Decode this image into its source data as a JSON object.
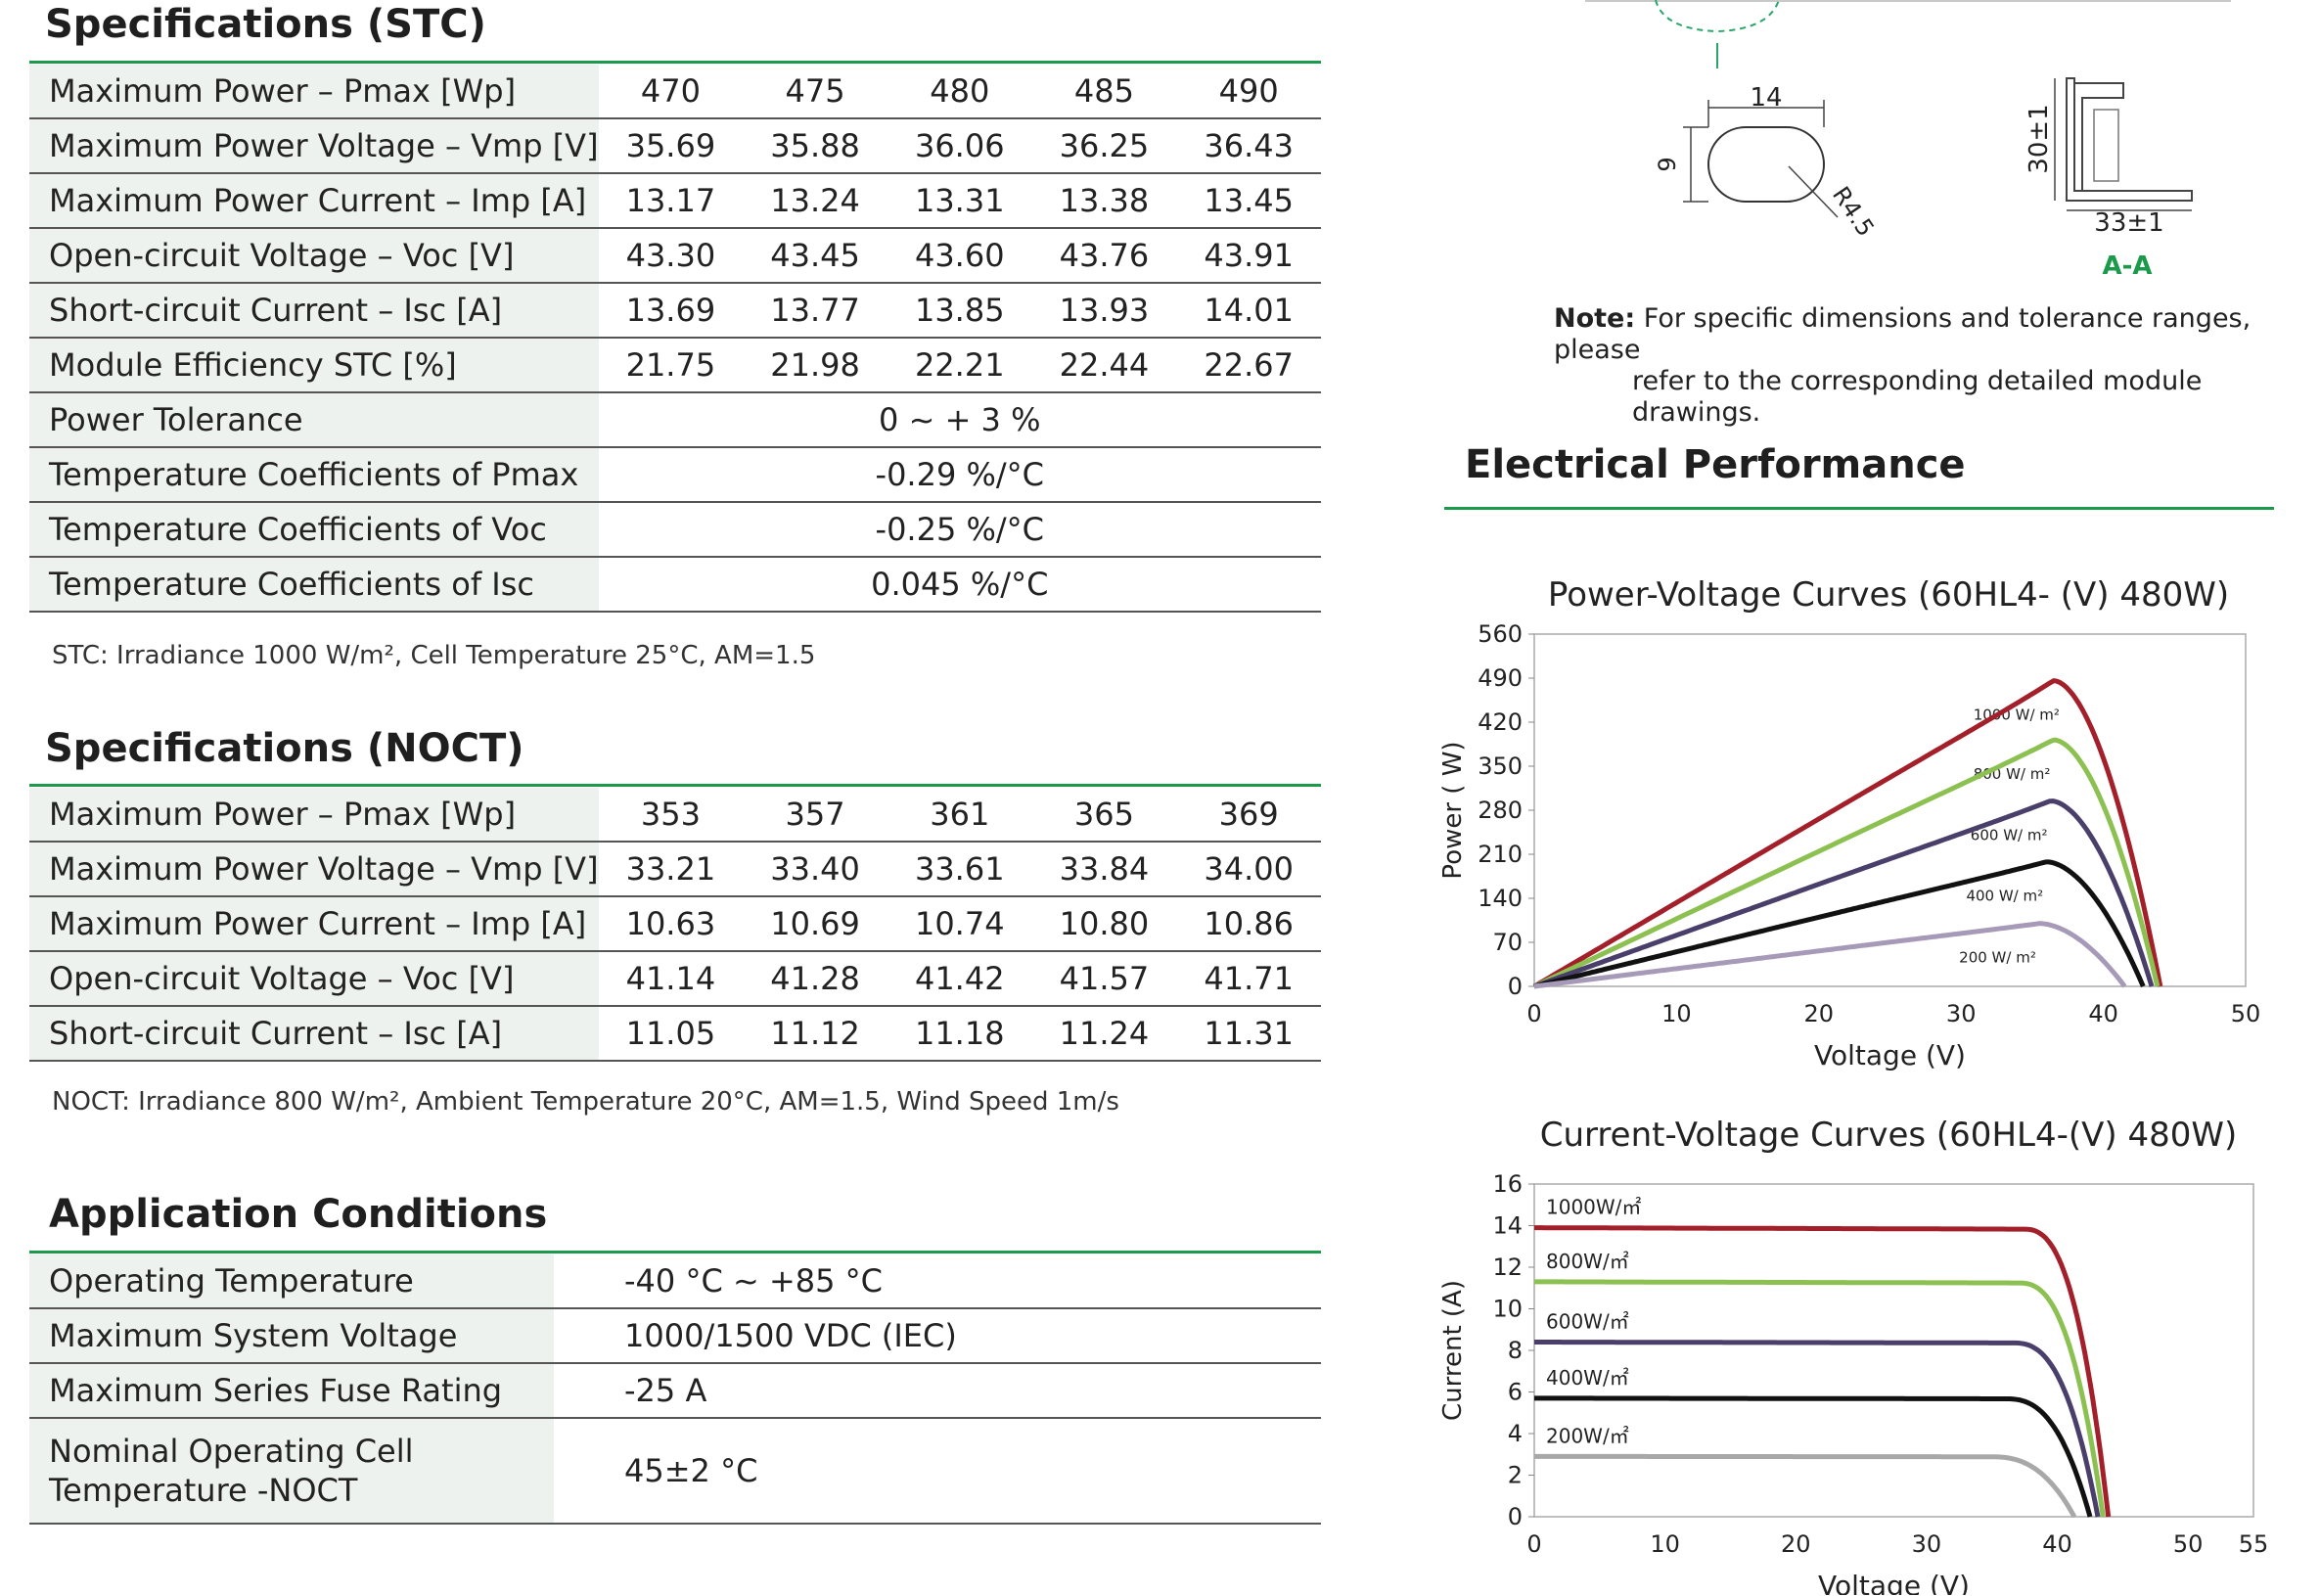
{
  "stc": {
    "title": "Specifications (STC)",
    "rows": [
      {
        "label": "Maximum Power – Pmax [Wp]",
        "values": [
          "470",
          "475",
          "480",
          "485",
          "490"
        ]
      },
      {
        "label": "Maximum Power Voltage – Vmp [V]",
        "values": [
          "35.69",
          "35.88",
          "36.06",
          "36.25",
          "36.43"
        ]
      },
      {
        "label": "Maximum Power Current – Imp [A]",
        "values": [
          "13.17",
          "13.24",
          "13.31",
          "13.38",
          "13.45"
        ]
      },
      {
        "label": "Open-circuit Voltage – Voc [V]",
        "values": [
          "43.30",
          "43.45",
          "43.60",
          "43.76",
          "43.91"
        ]
      },
      {
        "label": "Short-circuit Current – Isc [A]",
        "values": [
          "13.69",
          "13.77",
          "13.85",
          "13.93",
          "14.01"
        ]
      },
      {
        "label": "Module Efficiency STC [%]",
        "values": [
          "21.75",
          "21.98",
          "22.21",
          "22.44",
          "22.67"
        ]
      }
    ],
    "span_rows": [
      {
        "label": "Power Tolerance",
        "value": "0 ~ + 3 %"
      },
      {
        "label": "Temperature Coefficients of Pmax",
        "value": "-0.29 %/°C"
      },
      {
        "label": "Temperature Coefficients of Voc",
        "value": "-0.25 %/°C"
      },
      {
        "label": "Temperature Coefficients of Isc",
        "value": "0.045 %/°C"
      }
    ],
    "note": "STC: Irradiance 1000 W/m², Cell Temperature 25°C, AM=1.5"
  },
  "noct": {
    "title": "Specifications (NOCT)",
    "rows": [
      {
        "label": "Maximum Power – Pmax [Wp]",
        "values": [
          "353",
          "357",
          "361",
          "365",
          "369"
        ]
      },
      {
        "label": "Maximum Power Voltage – Vmp [V]",
        "values": [
          "33.21",
          "33.40",
          "33.61",
          "33.84",
          "34.00"
        ]
      },
      {
        "label": "Maximum Power Current – Imp [A]",
        "values": [
          "10.63",
          "10.69",
          "10.74",
          "10.80",
          "10.86"
        ]
      },
      {
        "label": "Open-circuit Voltage – Voc [V]",
        "values": [
          "41.14",
          "41.28",
          "41.42",
          "41.57",
          "41.71"
        ]
      },
      {
        "label": "Short-circuit Current – Isc [A]",
        "values": [
          "11.05",
          "11.12",
          "11.18",
          "11.24",
          "11.31"
        ]
      }
    ],
    "note": "NOCT: Irradiance 800 W/m², Ambient Temperature 20°C, AM=1.5, Wind Speed 1m/s"
  },
  "app": {
    "title": "Application Conditions",
    "rows": [
      {
        "label": "Operating Temperature",
        "value": "-40 °C ~ +85 °C"
      },
      {
        "label": "Maximum System Voltage",
        "value": "1000/1500 VDC (IEC)"
      },
      {
        "label": "Maximum Series Fuse Rating",
        "value": "-25 A"
      },
      {
        "label": "Nominal Operating Cell",
        "label2": "Temperature -NOCT",
        "value": "45±2 °C"
      }
    ]
  },
  "drawing": {
    "dim_14": "14",
    "dim_9": "9",
    "dim_r": "R4.5",
    "dim_30": "30±1",
    "dim_33": "33±1",
    "section": "A-A",
    "note_bold": "Note:",
    "note_line1": "For specific dimensions and tolerance ranges, please",
    "note_line2": "refer to the corresponding detailed module drawings.",
    "accent_color": "#1a9a4a"
  },
  "electrical": {
    "title": "Electrical Performance"
  },
  "chart_data": [
    {
      "type": "line",
      "title": "Power-Voltage Curves (60HL4- (V)  480W)",
      "xlabel": "Voltage (V)",
      "ylabel": "Power ( W)",
      "xlim": [
        0,
        50
      ],
      "ylim": [
        0,
        560
      ],
      "xticks": [
        "0",
        "10",
        "20",
        "30",
        "40",
        "50"
      ],
      "yticks": [
        "0",
        "70",
        "140",
        "210",
        "280",
        "350",
        "420",
        "490",
        "560"
      ],
      "series": [
        {
          "name": "1000 W/ m²",
          "color": "#a3202a",
          "vmp": 36.5,
          "pmax": 486,
          "voc": 44.0
        },
        {
          "name": "800 W/ m²",
          "color": "#8cc152",
          "vmp": 36.5,
          "pmax": 392,
          "voc": 43.8
        },
        {
          "name": "600 W/ m²",
          "color": "#4a3f6b",
          "vmp": 36.3,
          "pmax": 295,
          "voc": 43.4
        },
        {
          "name": "400 W/ m²",
          "color": "#111111",
          "vmp": 36.0,
          "pmax": 198,
          "voc": 42.8
        },
        {
          "name": "200 W/ m²",
          "color": "#a79ab8",
          "vmp": 35.5,
          "pmax": 100,
          "voc": 41.5
        }
      ]
    },
    {
      "type": "line",
      "title": "Current-Voltage Curves (60HL4-(V) 480W)",
      "xlabel": "Voltage (V)",
      "ylabel": "Current (A)",
      "xlim": [
        0,
        55
      ],
      "ylim": [
        0,
        16
      ],
      "xticks": [
        "0",
        "10",
        "20",
        "30",
        "40",
        "50",
        "55"
      ],
      "yticks": [
        "0",
        "2",
        "4",
        "6",
        "8",
        "10",
        "12",
        "14",
        "16"
      ],
      "series": [
        {
          "name": "1000W/㎡",
          "color": "#a3202a",
          "isc": 13.9,
          "voc": 43.9
        },
        {
          "name": "800W/㎡",
          "color": "#8cc152",
          "isc": 11.3,
          "voc": 43.5
        },
        {
          "name": "600W/㎡",
          "color": "#4a3f6b",
          "isc": 8.4,
          "voc": 43.1
        },
        {
          "name": "400W/㎡",
          "color": "#111111",
          "isc": 5.7,
          "voc": 42.5
        },
        {
          "name": "200W/㎡",
          "color": "#a8a8a8",
          "isc": 2.9,
          "voc": 41.3
        }
      ]
    }
  ]
}
